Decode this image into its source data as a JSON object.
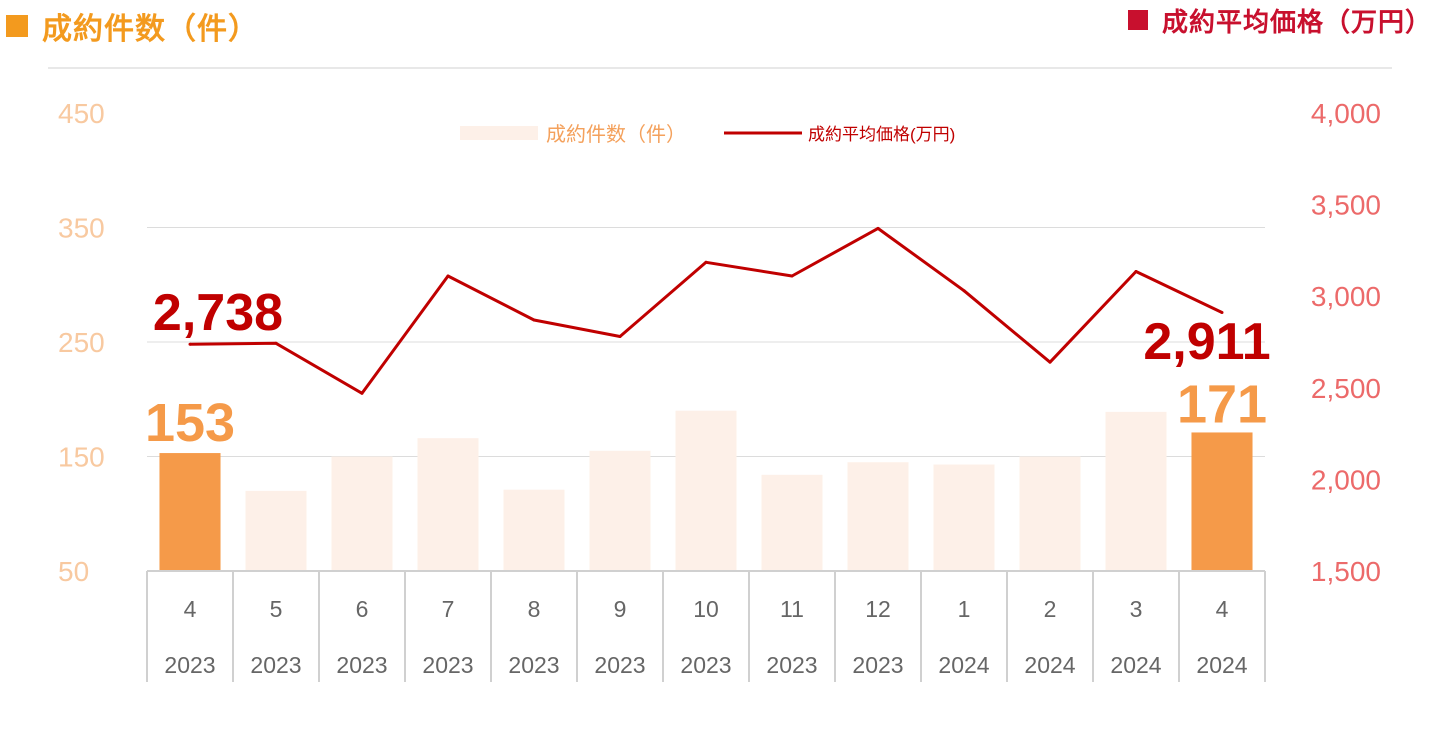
{
  "header": {
    "left_title": "成約件数（件）",
    "right_title": "成約平均価格（万円）",
    "left_color": "#f39a1e",
    "right_color": "#c8102e"
  },
  "chart_data": {
    "type": "bar+line",
    "categories": [
      {
        "month": "4",
        "year": "2023"
      },
      {
        "month": "5",
        "year": "2023"
      },
      {
        "month": "6",
        "year": "2023"
      },
      {
        "month": "7",
        "year": "2023"
      },
      {
        "month": "8",
        "year": "2023"
      },
      {
        "month": "9",
        "year": "2023"
      },
      {
        "month": "10",
        "year": "2023"
      },
      {
        "month": "11",
        "year": "2023"
      },
      {
        "month": "12",
        "year": "2023"
      },
      {
        "month": "1",
        "year": "2024"
      },
      {
        "month": "2",
        "year": "2024"
      },
      {
        "month": "3",
        "year": "2024"
      },
      {
        "month": "4",
        "year": "2024"
      }
    ],
    "series": [
      {
        "name": "成約件数（件）",
        "type": "bar",
        "axis": "left",
        "values": [
          153,
          120,
          150,
          166,
          121,
          155,
          190,
          134,
          145,
          143,
          150,
          189,
          171
        ],
        "highlight_indices": [
          0,
          12
        ],
        "color": "#f59a49",
        "muted_color": "#fdf0e8"
      },
      {
        "name": "成約平均価格(万円)",
        "type": "line",
        "axis": "right",
        "values": [
          2738,
          2743,
          2470,
          3110,
          2870,
          2780,
          3185,
          3110,
          3370,
          3030,
          2640,
          3135,
          2911
        ],
        "color": "#c00000"
      }
    ],
    "left_axis": {
      "min": 50,
      "max": 450,
      "ticks": [
        "450",
        "350",
        "250",
        "150",
        "50"
      ],
      "color": "#f8c9a0"
    },
    "right_axis": {
      "min": 1500,
      "max": 4000,
      "ticks": [
        "4,000",
        "3,500",
        "3,000",
        "2,500",
        "2,000",
        "1,500"
      ],
      "color": "#ec6a6a"
    },
    "annotations": {
      "bar_first": "153",
      "bar_last": "171",
      "line_first": "2,738",
      "line_last": "2,911"
    },
    "legend": {
      "placement": "top-center",
      "bar_label": "成約件数（件）",
      "line_label": "成約平均価格(万円)"
    },
    "grid": true
  }
}
